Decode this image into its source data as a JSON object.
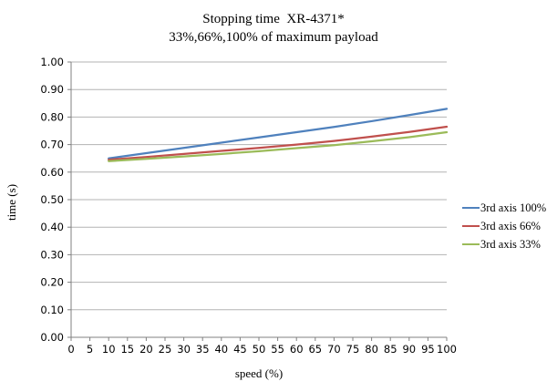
{
  "chart_data": {
    "type": "line",
    "title": "Stopping time  XR-4371*",
    "subtitle": "33%,66%,100% of maximum payload",
    "xlabel": "speed (%)",
    "ylabel": "time (s)",
    "x": [
      10,
      20,
      30,
      40,
      50,
      60,
      70,
      80,
      90,
      100
    ],
    "series": [
      {
        "name": "3rd axis 100%",
        "color": "#4F81BD",
        "values": [
          0.65,
          0.669,
          0.688,
          0.707,
          0.726,
          0.745,
          0.764,
          0.785,
          0.807,
          0.83
        ]
      },
      {
        "name": "3rd axis 66%",
        "color": "#C0504D",
        "values": [
          0.645,
          0.655,
          0.666,
          0.677,
          0.688,
          0.7,
          0.713,
          0.729,
          0.746,
          0.765
        ]
      },
      {
        "name": "3rd axis 33%",
        "color": "#9BBB59",
        "values": [
          0.64,
          0.648,
          0.657,
          0.666,
          0.676,
          0.687,
          0.698,
          0.712,
          0.727,
          0.745
        ]
      }
    ],
    "xlim": [
      0,
      100
    ],
    "ylim": [
      0,
      1.0
    ],
    "x_ticks": [
      0,
      5,
      10,
      15,
      20,
      25,
      30,
      35,
      40,
      45,
      50,
      55,
      60,
      65,
      70,
      75,
      80,
      85,
      90,
      95,
      100
    ],
    "y_ticks": [
      "0.00",
      "0.10",
      "0.20",
      "0.30",
      "0.40",
      "0.50",
      "0.60",
      "0.70",
      "0.80",
      "0.90",
      "1.00"
    ],
    "grid": "horizontal gridlines on",
    "legend_position": "right",
    "axis_color": "#808080",
    "gridline_color": "#b3b3b3",
    "line_width": 2.25
  }
}
